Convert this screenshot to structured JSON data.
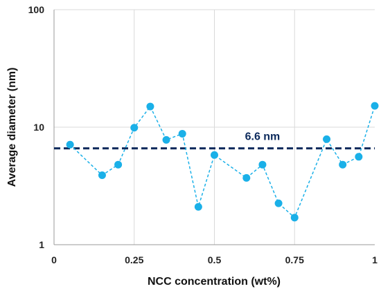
{
  "chart_data": {
    "type": "scatter",
    "title": "",
    "xlabel": "NCC concentration (wt%)",
    "ylabel": "Average diameter (nm)",
    "xlim": [
      0,
      1
    ],
    "ylim": [
      1,
      100
    ],
    "yscale": "log",
    "grid": true,
    "legend": "none",
    "x_ticks": [
      {
        "value": 0,
        "label": "0"
      },
      {
        "value": 0.25,
        "label": "0.25"
      },
      {
        "value": 0.5,
        "label": "0.5"
      },
      {
        "value": 0.75,
        "label": "0.75"
      },
      {
        "value": 1,
        "label": "1"
      }
    ],
    "y_ticks": [
      {
        "value": 1,
        "label": "1"
      },
      {
        "value": 10,
        "label": "10"
      },
      {
        "value": 100,
        "label": "100"
      }
    ],
    "series": [
      {
        "x": [
          0.05,
          0.15,
          0.2,
          0.25,
          0.3,
          0.35,
          0.4,
          0.45,
          0.5,
          0.6,
          0.65,
          0.7,
          0.75,
          0.85,
          0.9,
          0.95,
          1.0
        ],
        "y": [
          7.1,
          3.9,
          4.8,
          9.9,
          15.0,
          7.8,
          8.8,
          2.1,
          5.8,
          3.7,
          4.8,
          2.25,
          1.7,
          7.9,
          4.8,
          5.6,
          15.2
        ],
        "color": "#1ab0e8",
        "line_style": "dashed"
      }
    ],
    "reference_line": {
      "y": 6.6,
      "label": "6.6 nm",
      "color": "#0c2a5c",
      "line_style": "dashed"
    },
    "colors": {
      "grid": "#d9d9d9",
      "axis": "#9a9a9a"
    }
  }
}
